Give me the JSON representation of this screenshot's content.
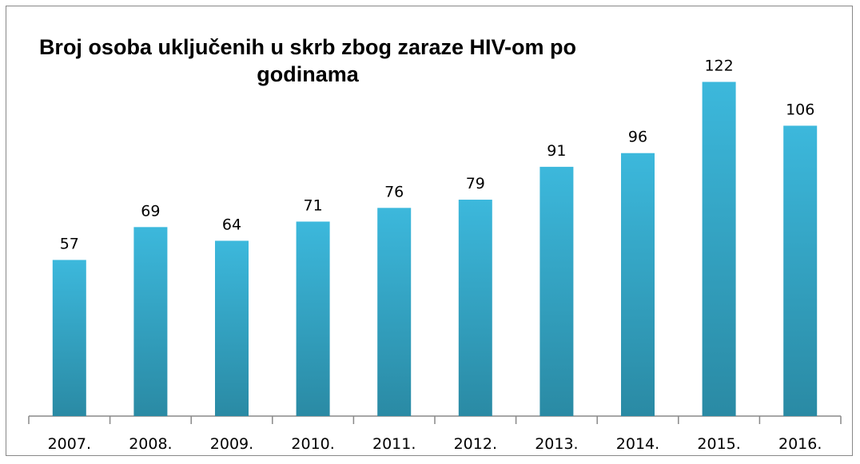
{
  "chart_data": {
    "type": "bar",
    "title": "Broj osoba uključenih u skrb zbog zaraze HIV-om po godinama",
    "categories": [
      "2007.",
      "2008.",
      "2009.",
      "2010.",
      "2011.",
      "2012.",
      "2013.",
      "2014.",
      "2015.",
      "2016."
    ],
    "values": [
      57,
      69,
      64,
      71,
      76,
      79,
      91,
      96,
      122,
      106
    ],
    "color": "#36b1d4"
  }
}
